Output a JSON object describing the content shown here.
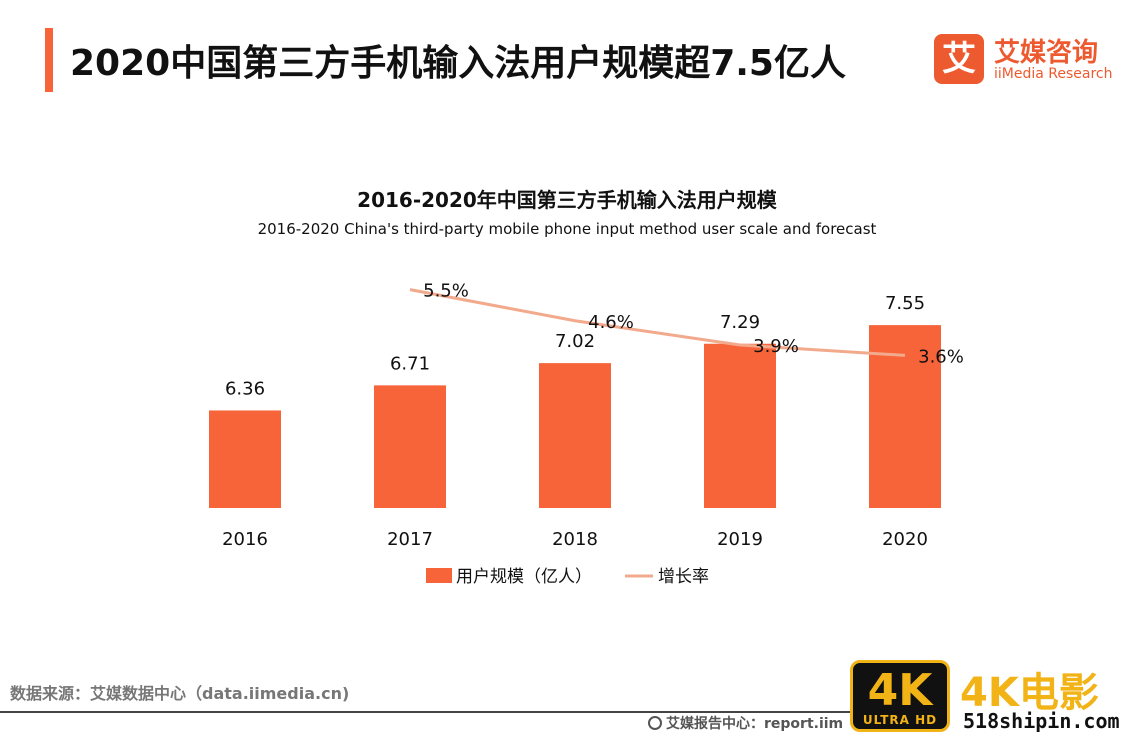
{
  "header": {
    "title": "2020中国第三方手机输入法用户规模超7.5亿人"
  },
  "logo": {
    "mark": "艾",
    "name_cn": "艾媒咨询",
    "name_en": "iiMedia Research"
  },
  "colors": {
    "accent": "#f7643a",
    "bar": "#f7643a",
    "line": "#f2a98c",
    "logo": "#ee5a2f",
    "watermark": "#f2b316"
  },
  "chart_data": {
    "type": "bar",
    "title": "2016-2020年中国第三方手机输入法用户规模",
    "subtitle": "2016-2020 China's third-party mobile phone input method user scale and forecast",
    "categories": [
      "2016",
      "2017",
      "2018",
      "2019",
      "2020"
    ],
    "series": [
      {
        "name": "用户规模（亿人）",
        "type": "bar",
        "values": [
          6.36,
          6.71,
          7.02,
          7.29,
          7.55
        ],
        "labels": [
          "6.36",
          "6.71",
          "7.02",
          "7.29",
          "7.55"
        ]
      },
      {
        "name": "增长率",
        "type": "line",
        "values": [
          null,
          5.5,
          4.6,
          3.9,
          3.6
        ],
        "labels": [
          "",
          "5.5%",
          "4.6%",
          "3.9%",
          "3.6%"
        ]
      }
    ],
    "bar_axis_range": [
      5,
      7.9
    ],
    "line_axis_range": [
      0,
      6.5
    ],
    "legend_position": "bottom-center",
    "grid": false
  },
  "footer": {
    "source": "数据来源：艾媒数据中心（data.iimedia.cn)",
    "report": "艾媒报告中心：report.iim"
  },
  "watermark": {
    "badge": "4K",
    "badge_sub": "ULTRA HD",
    "text": "4K电影",
    "url": "518shipin.com"
  }
}
